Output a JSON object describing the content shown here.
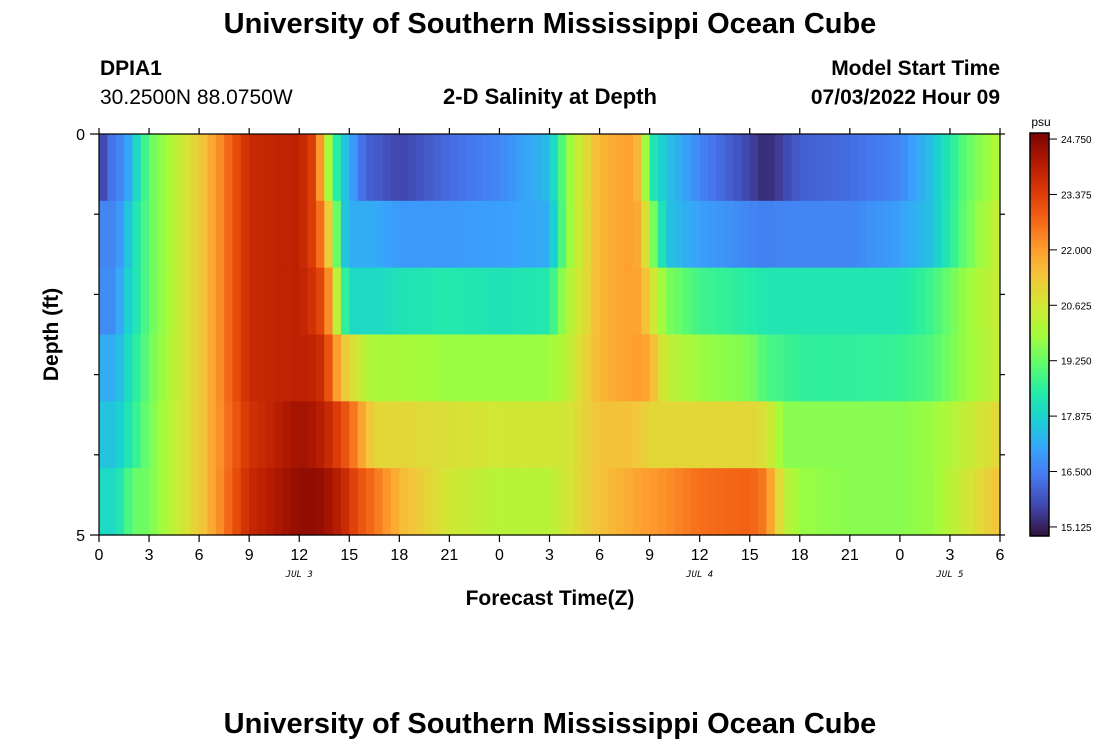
{
  "header": {
    "title": "University of Southern Mississippi Ocean Cube",
    "station_id": "DPIA1",
    "coordinates": "30.2500N  88.0750W",
    "plot_title": "2-D Salinity at Depth",
    "model_start_label": "Model Start Time",
    "model_start_value": "07/03/2022 Hour 09"
  },
  "footer": {
    "title": "University of Southern Mississippi Ocean Cube"
  },
  "chart_data": {
    "type": "heatmap",
    "title": "2-D Salinity at Depth",
    "xlabel": "Forecast Time(Z)",
    "ylabel": "Depth (ft)",
    "x_range_hours": [
      0,
      54
    ],
    "x_ticks": [
      "0",
      "3",
      "6",
      "9",
      "12",
      "15",
      "18",
      "21",
      "0",
      "3",
      "6",
      "9",
      "12",
      "15",
      "18",
      "21",
      "0",
      "3",
      "6"
    ],
    "date_labels": [
      {
        "text": "JUL 3",
        "hour": 12
      },
      {
        "text": "JUL 4",
        "hour": 36
      },
      {
        "text": "JUL 5",
        "hour": 51
      }
    ],
    "y_range": [
      0,
      5
    ],
    "y_tick_labels": [
      "0",
      "5"
    ],
    "depth_rows_ft": [
      0,
      1,
      2,
      3,
      4,
      5
    ],
    "colorbar": {
      "unit": "psu",
      "min": 14.9,
      "max": 24.9,
      "ticks": [
        "15.125",
        "16.500",
        "17.875",
        "19.250",
        "20.625",
        "22.000",
        "23.375",
        "24.750"
      ],
      "colors": [
        "#30123b",
        "#4145ab",
        "#4675ed",
        "#39a2fc",
        "#1bcfd4",
        "#24eca6",
        "#61fc6c",
        "#a4fc3b",
        "#d1e834",
        "#f3c63a",
        "#fe9b2d",
        "#f36315",
        "#d93806",
        "#b11901",
        "#7a0402"
      ]
    },
    "time_keys_hours": [
      0,
      1,
      1.5,
      2,
      3,
      6,
      7,
      9,
      12,
      13,
      13.5,
      14,
      14.5,
      15,
      16,
      16.5,
      18,
      21,
      24,
      27,
      28,
      29,
      30,
      32,
      32.5,
      33,
      34,
      36,
      39,
      40,
      41,
      42,
      45,
      48,
      50,
      52,
      54
    ],
    "salinity_psu": [
      [
        15.4,
        16.6,
        16.6,
        17.6,
        19.2,
        21.2,
        22.0,
        23.8,
        24.0,
        23.2,
        21.0,
        19.0,
        18.0,
        17.2,
        16.0,
        16.0,
        15.6,
        16.2,
        16.6,
        17.5,
        19.5,
        20.8,
        21.6,
        22.0,
        21.2,
        18.5,
        17.6,
        16.6,
        15.6,
        15.2,
        15.6,
        16.0,
        16.2,
        16.6,
        17.6,
        19.2,
        20.2
      ],
      [
        16.6,
        16.6,
        17.2,
        18.0,
        19.2,
        21.2,
        22.0,
        23.8,
        24.0,
        23.2,
        22.0,
        20.5,
        18.0,
        17.2,
        17.2,
        17.2,
        16.9,
        16.9,
        17.0,
        17.2,
        19.5,
        20.8,
        21.6,
        22.0,
        21.6,
        20.0,
        17.6,
        17.0,
        16.6,
        16.5,
        16.6,
        16.6,
        16.6,
        17.0,
        17.6,
        19.3,
        20.5
      ],
      [
        16.7,
        16.7,
        17.6,
        18.0,
        19.2,
        21.2,
        22.0,
        23.8,
        24.0,
        23.5,
        23.0,
        21.5,
        19.2,
        18.0,
        18.0,
        18.0,
        18.2,
        18.4,
        18.2,
        18.4,
        20.0,
        20.8,
        21.6,
        22.0,
        21.8,
        21.0,
        19.5,
        18.8,
        18.5,
        18.3,
        18.3,
        18.3,
        18.3,
        18.3,
        18.8,
        19.8,
        20.5
      ],
      [
        17.2,
        17.2,
        17.8,
        18.3,
        19.3,
        21.2,
        22.0,
        23.8,
        24.0,
        23.9,
        23.6,
        22.5,
        21.5,
        21.0,
        20.2,
        20.0,
        20.0,
        19.8,
        19.8,
        19.8,
        20.2,
        21.0,
        21.6,
        22.0,
        22.0,
        21.8,
        20.4,
        19.8,
        19.5,
        18.9,
        18.8,
        18.6,
        18.6,
        18.7,
        19.0,
        19.8,
        20.4
      ],
      [
        17.6,
        17.6,
        18.0,
        18.5,
        19.4,
        21.2,
        22.0,
        23.6,
        24.4,
        24.2,
        24.0,
        23.6,
        23.2,
        22.8,
        21.6,
        21.0,
        21.0,
        20.8,
        20.6,
        20.6,
        20.6,
        21.0,
        21.4,
        21.4,
        21.2,
        21.0,
        21.0,
        21.0,
        21.0,
        20.8,
        19.6,
        19.6,
        19.6,
        19.6,
        19.8,
        20.4,
        21.0
      ],
      [
        18.0,
        18.0,
        18.6,
        19.2,
        19.4,
        21.2,
        22.0,
        23.8,
        24.6,
        24.6,
        24.5,
        24.2,
        24.0,
        23.5,
        22.8,
        22.6,
        21.6,
        20.6,
        20.2,
        20.2,
        20.6,
        21.0,
        21.4,
        21.8,
        22.0,
        22.0,
        22.2,
        22.6,
        22.8,
        22.4,
        20.4,
        19.8,
        19.6,
        19.6,
        19.8,
        20.6,
        21.4
      ]
    ]
  }
}
